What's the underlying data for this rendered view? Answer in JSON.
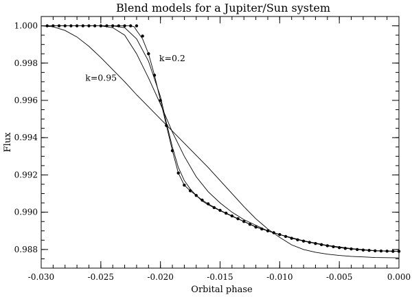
{
  "chart_data": {
    "type": "line",
    "title": "Blend models for a Jupiter/Sun system",
    "xlabel": "Orbital phase",
    "ylabel": "Flux",
    "xlim": [
      -0.03,
      0.0
    ],
    "ylim": [
      0.987,
      1.0005
    ],
    "x_ticks": [
      -0.03,
      -0.025,
      -0.02,
      -0.015,
      -0.01,
      -0.005,
      0.0
    ],
    "x_tick_labels": [
      "-0.030",
      "-0.025",
      "-0.020",
      "-0.015",
      "-0.010",
      "-0.005",
      "0.000"
    ],
    "y_ticks": [
      0.988,
      0.99,
      0.992,
      0.994,
      0.996,
      0.998,
      1.0
    ],
    "y_tick_labels": [
      "0.988",
      "0.990",
      "0.992",
      "0.994",
      "0.996",
      "0.998",
      "1.000"
    ],
    "grid": false,
    "legend": "none",
    "annotations": [
      {
        "text": "k=0.2",
        "x": -0.0201,
        "y": 0.9981
      },
      {
        "text": "k=0.95",
        "x": -0.0263,
        "y": 0.99705
      }
    ],
    "series": [
      {
        "style": "points",
        "x": [
          -0.0295,
          -0.029,
          -0.0285,
          -0.028,
          -0.0275,
          -0.027,
          -0.0265,
          -0.026,
          -0.0255,
          -0.025,
          -0.0245,
          -0.024,
          -0.0235,
          -0.023,
          -0.0225,
          -0.022,
          -0.0215,
          -0.021,
          -0.0205,
          -0.02,
          -0.0195,
          -0.019,
          -0.0185,
          -0.018,
          -0.0175,
          -0.017,
          -0.0165,
          -0.016,
          -0.0155,
          -0.015,
          -0.0145,
          -0.014,
          -0.0135,
          -0.013,
          -0.0125,
          -0.012,
          -0.0115,
          -0.011,
          -0.0105,
          -0.01,
          -0.0095,
          -0.009,
          -0.0085,
          -0.008,
          -0.0075,
          -0.007,
          -0.0065,
          -0.006,
          -0.0055,
          -0.005,
          -0.0045,
          -0.004,
          -0.0035,
          -0.003,
          -0.0025,
          -0.002,
          -0.0015,
          -0.001,
          -0.0005,
          0.0
        ],
        "y": [
          1.0,
          1.0,
          1.0,
          1.0,
          1.0,
          1.0,
          1.0,
          1.0,
          1.0,
          1.0,
          1.0,
          1.0,
          1.0,
          1.0,
          1.0,
          1.0,
          0.99945,
          0.9985,
          0.99735,
          0.996,
          0.99465,
          0.9933,
          0.9921,
          0.99145,
          0.99115,
          0.9909,
          0.99065,
          0.99045,
          0.99025,
          0.9901,
          0.98995,
          0.9898,
          0.98965,
          0.9895,
          0.98935,
          0.9892,
          0.9891,
          0.989,
          0.9889,
          0.9888,
          0.9887,
          0.9886,
          0.98852,
          0.98845,
          0.98838,
          0.98832,
          0.98826,
          0.9882,
          0.98815,
          0.9881,
          0.98806,
          0.98803,
          0.988,
          0.98797,
          0.98795,
          0.98793,
          0.98792,
          0.98791,
          0.9879,
          0.9879
        ]
      },
      {
        "style": "line",
        "x": [
          -0.03,
          -0.0225,
          -0.0222,
          -0.022,
          -0.0215,
          -0.021,
          -0.0205,
          -0.02,
          -0.0195,
          -0.019,
          -0.0185,
          -0.018,
          -0.0175,
          -0.017,
          -0.0165,
          -0.016,
          -0.015,
          -0.014,
          -0.013,
          -0.012,
          -0.011,
          -0.01,
          -0.009,
          -0.008,
          -0.007,
          -0.006,
          -0.005,
          -0.004,
          -0.003,
          -0.002,
          -0.001,
          0.0
        ],
        "y": [
          1.0,
          1.0,
          0.99995,
          0.99975,
          0.9993,
          0.9985,
          0.99735,
          0.996,
          0.99465,
          0.9933,
          0.9921,
          0.99145,
          0.99115,
          0.9909,
          0.99065,
          0.99045,
          0.9901,
          0.9898,
          0.9895,
          0.9892,
          0.989,
          0.9888,
          0.9886,
          0.98845,
          0.98832,
          0.9882,
          0.9881,
          0.98803,
          0.98797,
          0.98793,
          0.98791,
          0.9879
        ]
      },
      {
        "style": "line",
        "x": [
          -0.03,
          -0.024,
          -0.023,
          -0.022,
          -0.021,
          -0.02,
          -0.0195,
          -0.019,
          -0.0185,
          -0.018,
          -0.0175,
          -0.017,
          -0.0165,
          -0.016,
          -0.015,
          -0.014,
          -0.013,
          -0.012,
          -0.011,
          -0.01,
          -0.008,
          -0.006,
          -0.004,
          -0.002,
          0.0
        ],
        "y": [
          1.0,
          1.0,
          0.9999,
          0.9993,
          0.9981,
          0.9962,
          0.9948,
          0.9935,
          0.9924,
          0.9917,
          0.99125,
          0.9909,
          0.9906,
          0.9904,
          0.99008,
          0.98978,
          0.9895,
          0.98922,
          0.989,
          0.9888,
          0.98847,
          0.98822,
          0.98805,
          0.98794,
          0.9879
        ]
      },
      {
        "style": "line",
        "x": [
          -0.03,
          -0.025,
          -0.024,
          -0.023,
          -0.022,
          -0.021,
          -0.02,
          -0.019,
          -0.018,
          -0.017,
          -0.016,
          -0.015,
          -0.014,
          -0.013,
          -0.012,
          -0.011,
          -0.01,
          -0.008,
          -0.006,
          -0.004,
          -0.002,
          0.0
        ],
        "y": [
          1.0,
          1.0,
          0.9999,
          0.9995,
          0.9985,
          0.9972,
          0.9958,
          0.9943,
          0.993,
          0.9919,
          0.9911,
          0.9905,
          0.99,
          0.9896,
          0.9893,
          0.989,
          0.9888,
          0.98845,
          0.9882,
          0.98803,
          0.98793,
          0.9879
        ]
      },
      {
        "style": "line",
        "x": [
          -0.03,
          -0.029,
          -0.028,
          -0.027,
          -0.026,
          -0.025,
          -0.024,
          -0.023,
          -0.022,
          -0.021,
          -0.02,
          -0.019,
          -0.018,
          -0.017,
          -0.016,
          -0.015,
          -0.014,
          -0.013,
          -0.012,
          -0.011,
          -0.01,
          -0.009,
          -0.008,
          -0.007,
          -0.006,
          -0.005,
          -0.004,
          -0.003,
          -0.002,
          -0.001,
          0.0
        ],
        "y": [
          1.0,
          0.99995,
          0.99975,
          0.9994,
          0.9989,
          0.9983,
          0.99765,
          0.997,
          0.9963,
          0.99565,
          0.995,
          0.99435,
          0.9937,
          0.99305,
          0.9924,
          0.9917,
          0.991,
          0.9903,
          0.98965,
          0.9891,
          0.98865,
          0.98825,
          0.988,
          0.98785,
          0.98775,
          0.98768,
          0.98763,
          0.9876,
          0.98757,
          0.98756,
          0.98755
        ]
      }
    ]
  }
}
